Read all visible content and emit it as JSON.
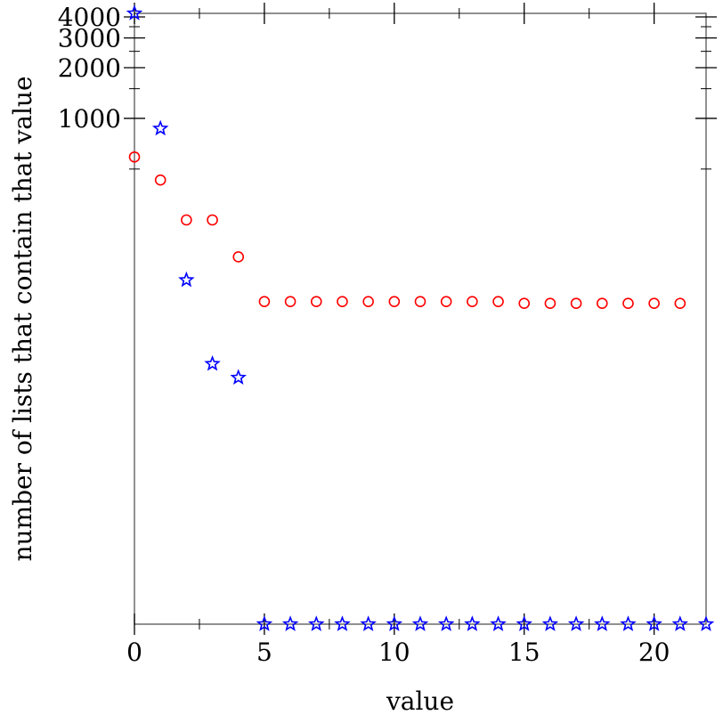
{
  "chart_data": {
    "type": "scatter",
    "title": "",
    "xlabel": "value",
    "ylabel": "number of lists that contain that value",
    "xlim": [
      0,
      22
    ],
    "ylim": [
      0,
      4200
    ],
    "y_scale": "log1p",
    "x_ticks": [
      {
        "value": 0,
        "label": "0"
      },
      {
        "value": 5,
        "label": "5"
      },
      {
        "value": 10,
        "label": "10"
      },
      {
        "value": 15,
        "label": "15"
      },
      {
        "value": 20,
        "label": "20"
      }
    ],
    "y_ticks": [
      {
        "value": 1000,
        "label": "1000"
      },
      {
        "value": 2000,
        "label": "2000"
      },
      {
        "value": 3000,
        "label": "3000"
      },
      {
        "value": 4000,
        "label": "4000"
      }
    ],
    "grid": false,
    "legend": "none",
    "colors": {
      "circles": "#ff0000",
      "stars": "#0000ff",
      "axes": "#000000"
    },
    "series": [
      {
        "marker": "circle",
        "color": "#ff0000",
        "points": [
          {
            "x": 0,
            "y": 590
          },
          {
            "x": 1,
            "y": 430
          },
          {
            "x": 2,
            "y": 249
          },
          {
            "x": 3,
            "y": 249
          },
          {
            "x": 4,
            "y": 150
          },
          {
            "x": 5,
            "y": 81
          },
          {
            "x": 6,
            "y": 81
          },
          {
            "x": 7,
            "y": 81
          },
          {
            "x": 8,
            "y": 81
          },
          {
            "x": 9,
            "y": 81
          },
          {
            "x": 10,
            "y": 81
          },
          {
            "x": 11,
            "y": 81
          },
          {
            "x": 12,
            "y": 81
          },
          {
            "x": 13,
            "y": 81
          },
          {
            "x": 14,
            "y": 81
          },
          {
            "x": 15,
            "y": 79
          },
          {
            "x": 16,
            "y": 79
          },
          {
            "x": 17,
            "y": 79
          },
          {
            "x": 18,
            "y": 79
          },
          {
            "x": 19,
            "y": 79
          },
          {
            "x": 20,
            "y": 79
          },
          {
            "x": 21,
            "y": 79
          }
        ]
      },
      {
        "marker": "star",
        "color": "#0000ff",
        "points": [
          {
            "x": 0,
            "y": 4200
          },
          {
            "x": 1,
            "y": 870
          },
          {
            "x": 2,
            "y": 109
          },
          {
            "x": 3,
            "y": 34
          },
          {
            "x": 4,
            "y": 28
          },
          {
            "x": 5,
            "y": 0
          },
          {
            "x": 6,
            "y": 0
          },
          {
            "x": 7,
            "y": 0
          },
          {
            "x": 8,
            "y": 0
          },
          {
            "x": 9,
            "y": 0
          },
          {
            "x": 10,
            "y": 0
          },
          {
            "x": 11,
            "y": 0
          },
          {
            "x": 12,
            "y": 0
          },
          {
            "x": 13,
            "y": 0
          },
          {
            "x": 14,
            "y": 0
          },
          {
            "x": 15,
            "y": 0
          },
          {
            "x": 16,
            "y": 0
          },
          {
            "x": 17,
            "y": 0
          },
          {
            "x": 18,
            "y": 0
          },
          {
            "x": 19,
            "y": 0
          },
          {
            "x": 20,
            "y": 0
          },
          {
            "x": 21,
            "y": 0
          },
          {
            "x": 22,
            "y": 0
          }
        ]
      }
    ]
  }
}
